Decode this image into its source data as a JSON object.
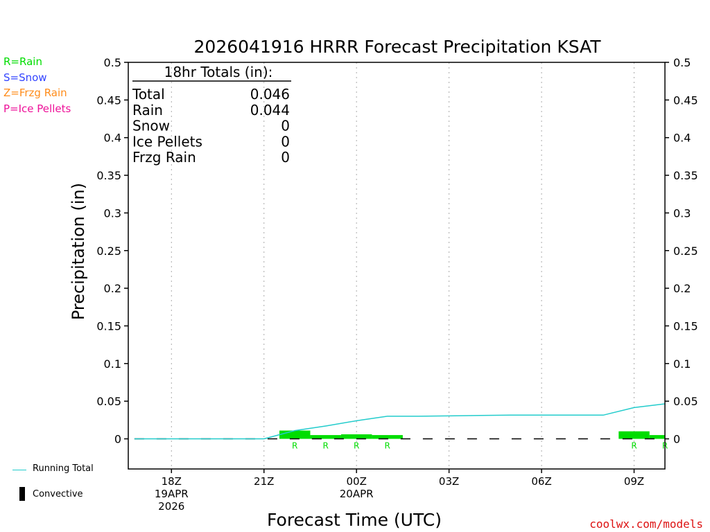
{
  "chart_data": {
    "type": "bar+line",
    "title": "2026041916 HRRR Forecast Precipitation KSAT",
    "xlabel": "Forecast Time (UTC)",
    "ylabel": "Precipitation (in)",
    "ylim": [
      -0.04,
      0.5
    ],
    "y_ticks": [
      0,
      0.05,
      0.1,
      0.15,
      0.2,
      0.25,
      0.3,
      0.35,
      0.4,
      0.45,
      0.5
    ],
    "y_tick_labels": [
      "0",
      "0.05",
      "0.1",
      "0.15",
      "0.2",
      "0.25",
      "0.3",
      "0.35",
      "0.4",
      "0.45",
      "0.5"
    ],
    "xlim": [
      16.6,
      34.0
    ],
    "x_ticks": [
      {
        "hour": 18,
        "lines": [
          "18Z",
          "19APR",
          "2026"
        ]
      },
      {
        "hour": 21,
        "lines": [
          "21Z"
        ]
      },
      {
        "hour": 24,
        "lines": [
          "00Z",
          "20APR"
        ]
      },
      {
        "hour": 27,
        "lines": [
          "03Z"
        ]
      },
      {
        "hour": 30,
        "lines": [
          "06Z"
        ]
      },
      {
        "hour": 33,
        "lines": [
          "09Z"
        ]
      }
    ],
    "hourly_precip": [
      {
        "start": 21.5,
        "end": 22.5,
        "value": 0.011,
        "type": "R"
      },
      {
        "start": 22.5,
        "end": 23.5,
        "value": 0.005,
        "type": "R"
      },
      {
        "start": 23.5,
        "end": 24.5,
        "value": 0.006,
        "type": "R"
      },
      {
        "start": 24.5,
        "end": 25.5,
        "value": 0.005,
        "type": "R"
      },
      {
        "start": 32.5,
        "end": 33.5,
        "value": 0.01,
        "type": "R"
      },
      {
        "start": 33.5,
        "end": 34.0,
        "value": 0.005,
        "type": "R"
      }
    ],
    "precip_type_markers": [
      {
        "hour": 22,
        "label": "R"
      },
      {
        "hour": 23,
        "label": "R"
      },
      {
        "hour": 24,
        "label": "R"
      },
      {
        "hour": 25,
        "label": "R"
      },
      {
        "hour": 33,
        "label": "R"
      },
      {
        "hour": 34,
        "label": "R"
      }
    ],
    "running_total": {
      "x": [
        16.8,
        21.0,
        22.0,
        23.0,
        24.0,
        25.0,
        26.0,
        27.0,
        28.0,
        29.0,
        30.0,
        31.0,
        32.0,
        33.0,
        34.0
      ],
      "y": [
        0,
        0,
        0.011,
        0.017,
        0.024,
        0.03,
        0.03,
        0.0305,
        0.031,
        0.0315,
        0.0315,
        0.0315,
        0.0315,
        0.0415,
        0.0465
      ]
    },
    "colors": {
      "rain": "#00dd00",
      "snow": "#3344ff",
      "frzg_rain": "#ff8c1a",
      "ice_pellets": "#ee1199",
      "running_total": "#22cccc",
      "convective": "#000000",
      "grid": "#aaaaaa",
      "credit": "#dd1111"
    }
  },
  "totals_box": {
    "heading": "18hr Totals (in):",
    "rows": [
      {
        "label": "Total",
        "value": "0.046"
      },
      {
        "label": "Rain",
        "value": "0.044"
      },
      {
        "label": "Snow",
        "value": "0"
      },
      {
        "label": "Ice Pellets",
        "value": "0"
      },
      {
        "label": "Frzg Rain",
        "value": "0"
      }
    ]
  },
  "type_legend": {
    "rain": "R=Rain",
    "snow": "S=Snow",
    "frzg_rain": "Z=Frzg Rain",
    "ice_pellets": "P=Ice Pellets"
  },
  "line_legend": {
    "running_total": "Running Total",
    "convective": "Convective"
  },
  "credit": "coolwx.com/models"
}
